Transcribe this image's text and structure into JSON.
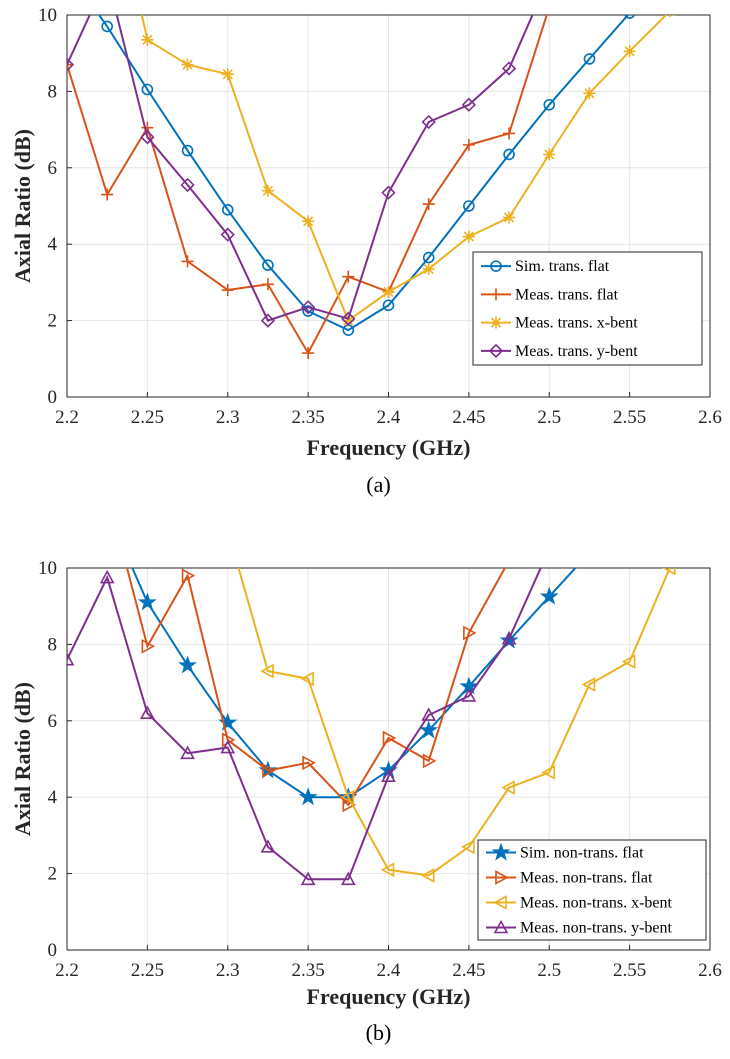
{
  "colors": {
    "blue": "#0072BD",
    "orange": "#D95319",
    "yellow": "#EDB120",
    "purple": "#7E2F8E"
  },
  "chart_data": [
    {
      "type": "line",
      "caption": "(a)",
      "xlabel": "Frequency (GHz)",
      "ylabel": "Axial Ratio (dB)",
      "xlim": [
        2.2,
        2.6
      ],
      "ylim": [
        0,
        10
      ],
      "xticks": [
        "2.2",
        "2.25",
        "2.3",
        "2.35",
        "2.4",
        "2.45",
        "2.5",
        "2.55",
        "2.6"
      ],
      "yticks": [
        "0",
        "2",
        "4",
        "6",
        "8",
        "10"
      ],
      "grid": true,
      "legend_position": "lower-right",
      "series": [
        {
          "name": "Sim. trans. flat",
          "color": "#0072BD",
          "marker": "circle",
          "x": [
            2.2,
            2.225,
            2.25,
            2.275,
            2.3,
            2.325,
            2.35,
            2.375,
            2.4,
            2.425,
            2.45,
            2.475,
            2.5,
            2.525,
            2.55
          ],
          "y": [
            11.2,
            9.7,
            8.05,
            6.45,
            4.9,
            3.45,
            2.25,
            1.75,
            2.4,
            3.65,
            5.0,
            6.35,
            7.65,
            8.85,
            10.05
          ]
        },
        {
          "name": "Meas. trans. flat",
          "color": "#D95319",
          "marker": "plus",
          "x": [
            2.2,
            2.225,
            2.25,
            2.275,
            2.3,
            2.325,
            2.35,
            2.375,
            2.4,
            2.425,
            2.45,
            2.475,
            2.5
          ],
          "y": [
            8.7,
            5.3,
            7.05,
            3.55,
            2.8,
            2.95,
            1.15,
            3.15,
            2.75,
            5.05,
            6.6,
            6.9,
            10.2
          ]
        },
        {
          "name": "Meas. trans. x-bent",
          "color": "#EDB120",
          "marker": "asterisk",
          "x": [
            2.225,
            2.25,
            2.275,
            2.3,
            2.325,
            2.35,
            2.375,
            2.4,
            2.425,
            2.45,
            2.475,
            2.5,
            2.525,
            2.55,
            2.575
          ],
          "y": [
            14,
            9.35,
            8.7,
            8.45,
            5.4,
            4.6,
            2.0,
            2.75,
            3.35,
            4.2,
            4.7,
            6.35,
            7.95,
            9.05,
            10.1
          ]
        },
        {
          "name": "Meas. trans. y-bent",
          "color": "#7E2F8E",
          "marker": "diamond",
          "x": [
            2.2,
            2.225,
            2.25,
            2.275,
            2.3,
            2.325,
            2.35,
            2.375,
            2.4,
            2.425,
            2.45,
            2.475,
            2.5
          ],
          "y": [
            8.7,
            11,
            6.8,
            5.55,
            4.25,
            2.0,
            2.35,
            2.05,
            5.35,
            7.2,
            7.65,
            8.6,
            11
          ]
        }
      ]
    },
    {
      "type": "line",
      "caption": "(b)",
      "xlabel": "Frequency (GHz)",
      "ylabel": "Axial Ratio (dB)",
      "xlim": [
        2.2,
        2.6
      ],
      "ylim": [
        0,
        10
      ],
      "xticks": [
        "2.2",
        "2.25",
        "2.3",
        "2.35",
        "2.4",
        "2.45",
        "2.5",
        "2.55",
        "2.6"
      ],
      "yticks": [
        "0",
        "2",
        "4",
        "6",
        "8",
        "10"
      ],
      "grid": true,
      "legend_position": "lower-right",
      "series": [
        {
          "name": "Sim. non-trans. flat",
          "color": "#0072BD",
          "marker": "star",
          "x": [
            2.225,
            2.25,
            2.275,
            2.3,
            2.325,
            2.35,
            2.375,
            2.4,
            2.425,
            2.45,
            2.475,
            2.5,
            2.525
          ],
          "y": [
            11.5,
            9.1,
            7.45,
            5.95,
            4.7,
            4.0,
            4.0,
            4.7,
            5.75,
            6.9,
            8.1,
            9.25,
            10.4
          ]
        },
        {
          "name": "Meas. non-trans. flat",
          "color": "#D95319",
          "marker": "triangle-right",
          "x": [
            2.225,
            2.25,
            2.275,
            2.3,
            2.325,
            2.35,
            2.375,
            2.4,
            2.425,
            2.45,
            2.475
          ],
          "y": [
            12,
            7.95,
            9.8,
            5.5,
            4.7,
            4.9,
            3.8,
            5.55,
            4.95,
            8.3,
            10.2
          ]
        },
        {
          "name": "Meas. non-trans. x-bent",
          "color": "#EDB120",
          "marker": "triangle-left",
          "x": [
            2.3,
            2.325,
            2.35,
            2.375,
            2.4,
            2.425,
            2.45,
            2.475,
            2.5,
            2.525,
            2.55,
            2.575
          ],
          "y": [
            11,
            7.3,
            7.1,
            4.0,
            2.1,
            1.95,
            2.7,
            4.25,
            4.65,
            6.95,
            7.55,
            10.0
          ]
        },
        {
          "name": "Meas. non-trans. y-bent",
          "color": "#7E2F8E",
          "marker": "triangle-up",
          "x": [
            2.2,
            2.225,
            2.25,
            2.275,
            2.3,
            2.325,
            2.35,
            2.375,
            2.4,
            2.425,
            2.45,
            2.475,
            2.5
          ],
          "y": [
            7.6,
            9.75,
            6.2,
            5.15,
            5.3,
            2.7,
            1.85,
            1.85,
            4.55,
            6.15,
            6.65,
            8.15,
            10.5
          ]
        }
      ]
    }
  ]
}
